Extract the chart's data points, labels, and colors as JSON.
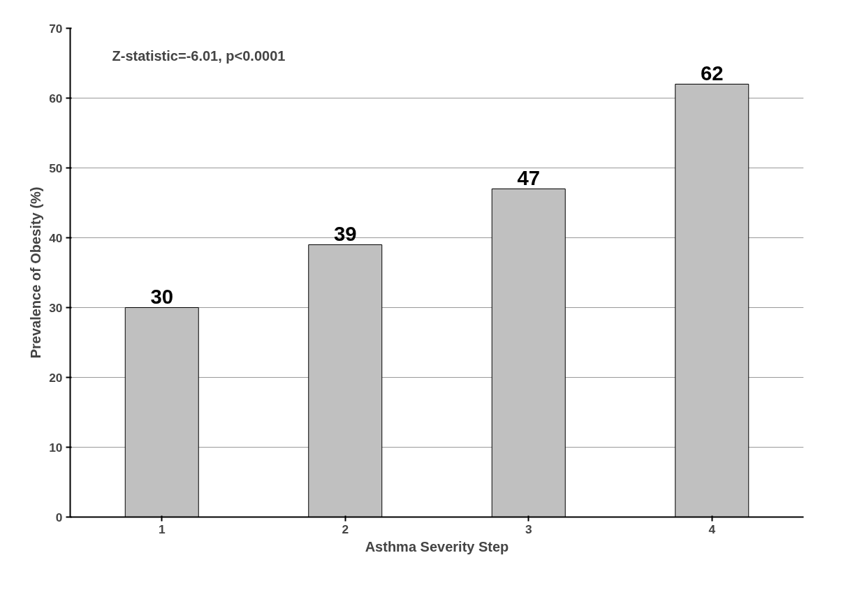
{
  "chart_data": {
    "type": "bar",
    "xlabel": "Asthma Severity Step",
    "ylabel": "Prevalence of Obesity (%)",
    "categories": [
      "1",
      "2",
      "3",
      "4"
    ],
    "values": [
      30,
      39,
      47,
      62
    ],
    "color": "#c0c0c0",
    "data_labels": true,
    "ylim": [
      0,
      70
    ],
    "yticks": [
      0,
      10,
      20,
      30,
      40,
      50,
      60,
      70
    ],
    "grid": "y",
    "annotations": [
      "Z-statistic=-6.01, p<0.0001"
    ]
  }
}
